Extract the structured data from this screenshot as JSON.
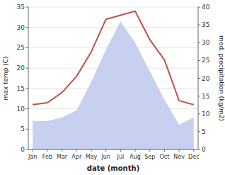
{
  "chart_data": {
    "type": "line",
    "xlabel": "date (month)",
    "ylabel": "max temp (C)",
    "y2label": "med. precipitation (kg/m2)",
    "categories": [
      "Jan",
      "Feb",
      "Mar",
      "Apr",
      "May",
      "Jun",
      "Jul",
      "Aug",
      "Sep",
      "Oct",
      "Nov",
      "Dec"
    ],
    "series": [
      {
        "type": "area",
        "axis": "y2",
        "color": "#c8d0f0",
        "values": [
          8.0,
          8.0,
          9.0,
          11.0,
          19.0,
          28.0,
          36.0,
          30.0,
          22.0,
          14.0,
          7.0,
          9.0
        ]
      },
      {
        "type": "line",
        "color": "#c0524a",
        "values": [
          11.0,
          11.5,
          14.0,
          18.0,
          24.0,
          32.0,
          33.0,
          34.0,
          27.0,
          22.0,
          12.0,
          11.0
        ]
      }
    ],
    "ylim": [
      0,
      35
    ],
    "yticks": [
      0,
      5,
      10,
      15,
      20,
      25,
      30,
      35
    ],
    "y2lim": [
      0,
      40
    ],
    "y2ticks": [
      0,
      5,
      10,
      15,
      20,
      25,
      30,
      35,
      40
    ],
    "grid": true
  }
}
